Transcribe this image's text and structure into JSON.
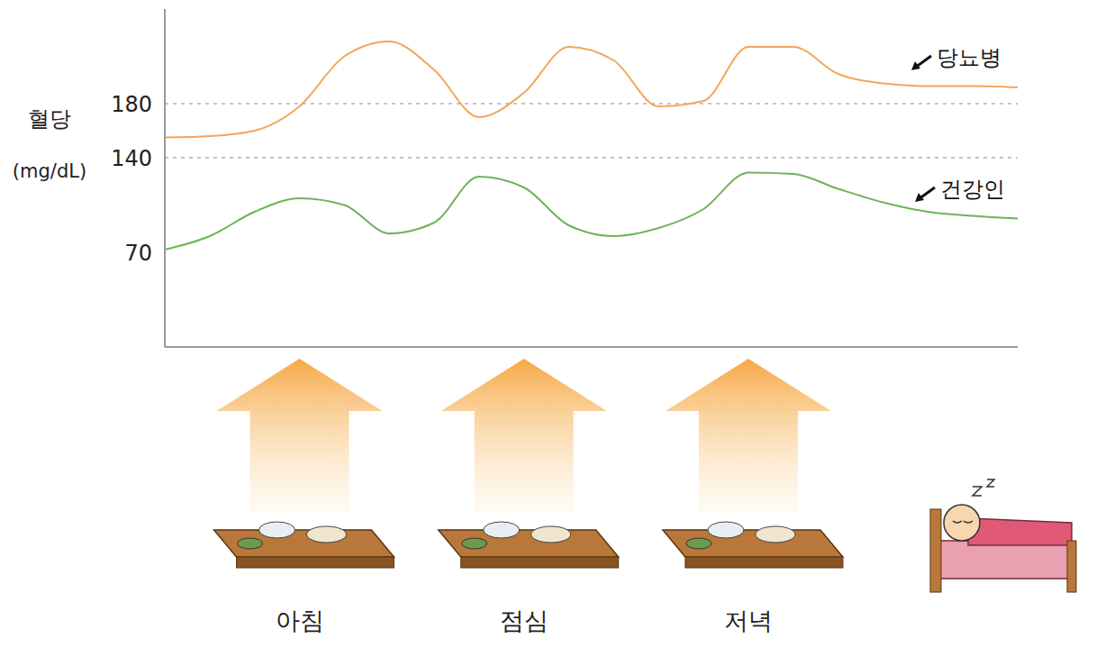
{
  "chart_data": {
    "type": "line",
    "y_label": "혈당 (mg/dL)",
    "categories": [
      null,
      null,
      null,
      "아침",
      null,
      null,
      null,
      null,
      "점심",
      null,
      null,
      null,
      null,
      "저녁",
      null,
      null,
      null,
      null,
      null,
      null
    ],
    "series": [
      {
        "name": "당뇨병",
        "color": "#f4a65a",
        "values": [
          155,
          156,
          160,
          178,
          215,
          226,
          205,
          170,
          188,
          222,
          212,
          178,
          182,
          222,
          222,
          202,
          195,
          193,
          193,
          192
        ]
      },
      {
        "name": "건강인",
        "color": "#6db35a",
        "values": [
          72,
          82,
          100,
          110,
          105,
          84,
          92,
          126,
          118,
          90,
          82,
          88,
          102,
          129,
          128,
          117,
          107,
          100,
          97,
          95
        ]
      }
    ],
    "ylim": [
      0,
      250
    ],
    "yticks": [
      70,
      140,
      180
    ],
    "reference_lines": [
      180,
      140
    ],
    "grid": false
  }
}
